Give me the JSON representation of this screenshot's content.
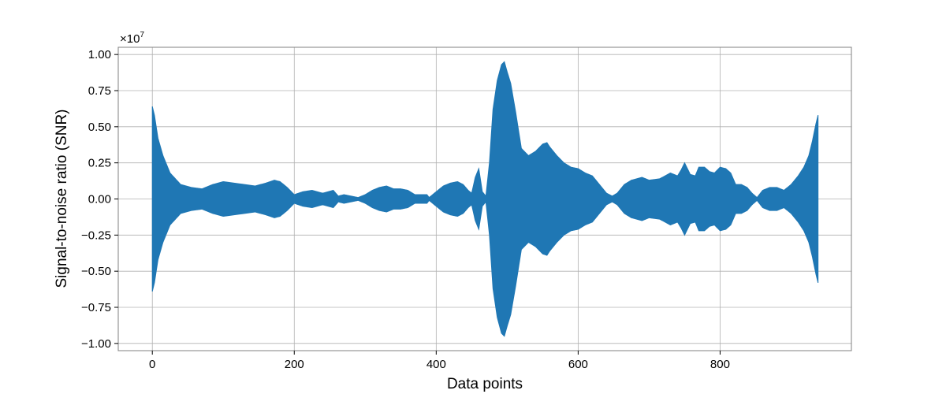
{
  "chart_data": {
    "type": "line",
    "title": "",
    "xlabel": "Data points",
    "ylabel": "Signal-to-noise ratio (SNR)",
    "y_offset_label": "×10",
    "y_offset_exponent": "7",
    "xlim": [
      -48,
      985
    ],
    "ylim": [
      -1.05,
      1.05
    ],
    "y_scale_factor": 10000000,
    "x_ticks": [
      0,
      200,
      400,
      600,
      800
    ],
    "x_tick_labels": [
      "0",
      "200",
      "400",
      "600",
      "800"
    ],
    "y_ticks": [
      -1.0,
      -0.75,
      -0.5,
      -0.25,
      0.0,
      0.25,
      0.5,
      0.75,
      1.0
    ],
    "y_tick_labels": [
      "−1.00",
      "−0.75",
      "−0.50",
      "−0.25",
      "0.00",
      "0.25",
      "0.50",
      "0.75",
      "1.00"
    ],
    "grid": true,
    "series": [
      {
        "color": "#1f77b4",
        "envelope": {
          "x": [
            0,
            3,
            8,
            15,
            25,
            40,
            55,
            70,
            85,
            100,
            115,
            130,
            145,
            160,
            172,
            180,
            190,
            200,
            212,
            225,
            240,
            255,
            262,
            270,
            280,
            290,
            300,
            310,
            320,
            330,
            340,
            350,
            360,
            370,
            380,
            387,
            390,
            400,
            410,
            420,
            430,
            438,
            445,
            450,
            455,
            460,
            465,
            470,
            475,
            480,
            486,
            492,
            496,
            500,
            505,
            512,
            520,
            530,
            540,
            550,
            556,
            560,
            570,
            580,
            590,
            600,
            610,
            620,
            630,
            640,
            648,
            655,
            665,
            675,
            690,
            700,
            715,
            730,
            740,
            745,
            750,
            758,
            765,
            770,
            778,
            785,
            792,
            800,
            808,
            815,
            822,
            830,
            838,
            845,
            852,
            860,
            870,
            880,
            890,
            900,
            910,
            918,
            925,
            930,
            935,
            938
          ],
          "upper": [
            0.64,
            0.58,
            0.42,
            0.3,
            0.18,
            0.1,
            0.08,
            0.07,
            0.1,
            0.12,
            0.11,
            0.1,
            0.09,
            0.11,
            0.13,
            0.12,
            0.08,
            0.03,
            0.05,
            0.06,
            0.04,
            0.06,
            0.02,
            0.03,
            0.02,
            0.01,
            0.03,
            0.06,
            0.08,
            0.09,
            0.07,
            0.07,
            0.06,
            0.03,
            0.03,
            0.03,
            0.01,
            0.05,
            0.09,
            0.11,
            0.12,
            0.1,
            0.06,
            0.04,
            0.15,
            0.21,
            0.05,
            0.02,
            0.25,
            0.62,
            0.82,
            0.93,
            0.95,
            0.88,
            0.8,
            0.6,
            0.35,
            0.3,
            0.33,
            0.38,
            0.39,
            0.36,
            0.3,
            0.25,
            0.22,
            0.21,
            0.18,
            0.16,
            0.1,
            0.04,
            0.02,
            0.04,
            0.1,
            0.13,
            0.15,
            0.13,
            0.14,
            0.18,
            0.16,
            0.2,
            0.25,
            0.17,
            0.16,
            0.22,
            0.22,
            0.19,
            0.18,
            0.22,
            0.21,
            0.18,
            0.1,
            0.1,
            0.08,
            0.04,
            0.01,
            0.06,
            0.08,
            0.08,
            0.06,
            0.1,
            0.16,
            0.22,
            0.3,
            0.4,
            0.52,
            0.58
          ]
        }
      }
    ]
  }
}
